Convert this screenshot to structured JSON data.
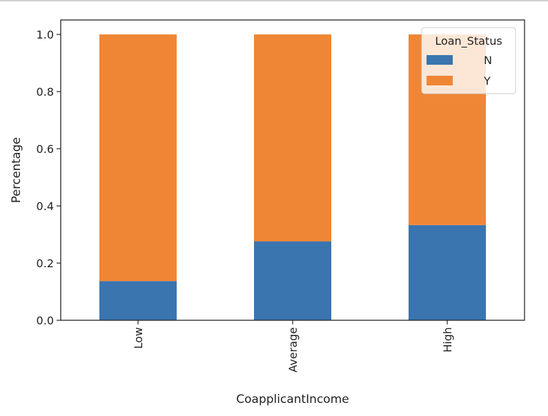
{
  "chart_data": {
    "type": "bar",
    "stacked": true,
    "categories": [
      "Low",
      "Average",
      "High"
    ],
    "series": [
      {
        "name": "N",
        "values": [
          0.137,
          0.276,
          0.333
        ],
        "color": "#3a75af"
      },
      {
        "name": "Y",
        "values": [
          0.863,
          0.724,
          0.667
        ],
        "color": "#ef8636"
      }
    ],
    "xlabel": "CoapplicantIncome",
    "ylabel": "Percentage",
    "ylim": [
      0,
      1.0
    ],
    "yticks": [
      "0.0",
      "0.2",
      "0.4",
      "0.6",
      "0.8",
      "1.0"
    ],
    "legend": {
      "title": "Loan_Status",
      "placement": "top-right"
    },
    "grid": false
  }
}
